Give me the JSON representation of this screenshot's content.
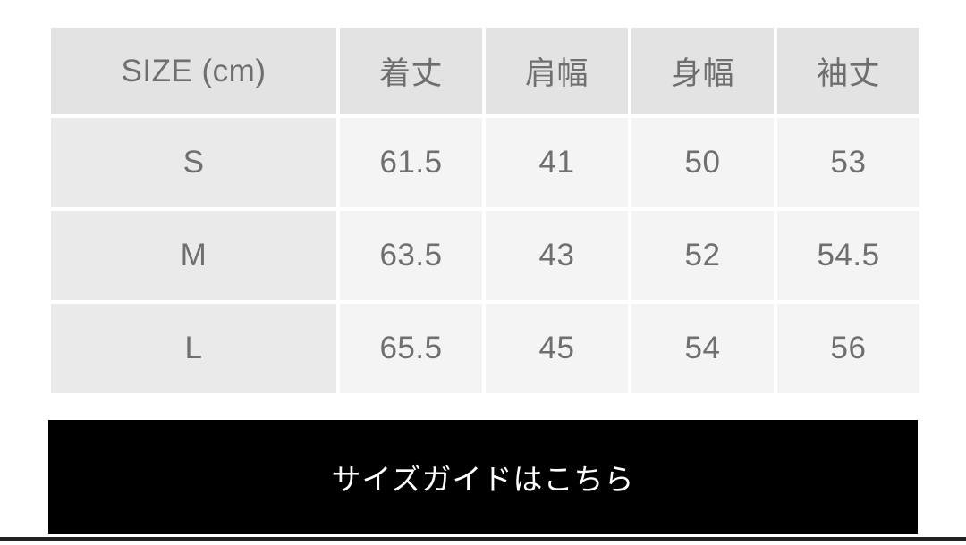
{
  "size_chart": {
    "columns": [
      "SIZE (cm)",
      "着丈",
      "肩幅",
      "身幅",
      "袖丈"
    ],
    "rows": [
      {
        "size": "S",
        "values": [
          "61.5",
          "41",
          "50",
          "53"
        ]
      },
      {
        "size": "M",
        "values": [
          "63.5",
          "43",
          "52",
          "54.5"
        ]
      },
      {
        "size": "L",
        "values": [
          "65.5",
          "45",
          "54",
          "56"
        ]
      }
    ]
  },
  "size_guide_button": {
    "label": "サイズガイドはこちら"
  },
  "colors": {
    "header_bg": "#e3e3e3",
    "size_column_bg": "#eaeaea",
    "data_cell_bg": "#f4f4f4",
    "table_text": "#6f6f6f",
    "button_bg": "#000000",
    "button_text": "#ffffff",
    "divider": "#222222"
  }
}
